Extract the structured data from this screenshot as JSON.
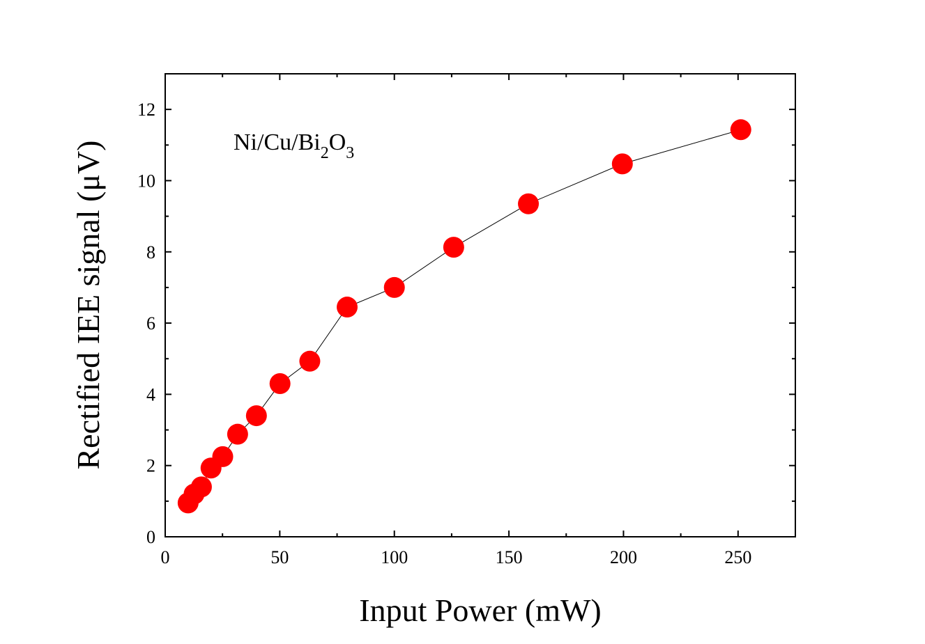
{
  "chart_data": {
    "type": "line",
    "xlabel": "Input Power (mW)",
    "ylabel": "Rectified IEE signal (μV)",
    "annotation": {
      "base": "Ni/Cu/Bi",
      "sub1": "2",
      "mid": "O",
      "sub2": "3"
    },
    "xlim": [
      0,
      275
    ],
    "ylim": [
      0,
      13
    ],
    "xticks": [
      0,
      50,
      100,
      150,
      200,
      250
    ],
    "yticks": [
      0,
      2,
      4,
      6,
      8,
      10,
      12
    ],
    "grid": false,
    "legend": "none",
    "marker_color": "#ff0000",
    "line_color": "#000000",
    "series": [
      {
        "x": [
          10,
          12.6,
          15.8,
          20,
          25.1,
          31.6,
          39.8,
          50.1,
          63.1,
          79.4,
          100,
          125.9,
          158.5,
          199.5,
          251.2
        ],
        "y": [
          0.95,
          1.2,
          1.4,
          1.93,
          2.25,
          2.88,
          3.4,
          4.3,
          4.93,
          6.45,
          7.0,
          8.13,
          9.35,
          10.47,
          11.43
        ]
      }
    ]
  }
}
